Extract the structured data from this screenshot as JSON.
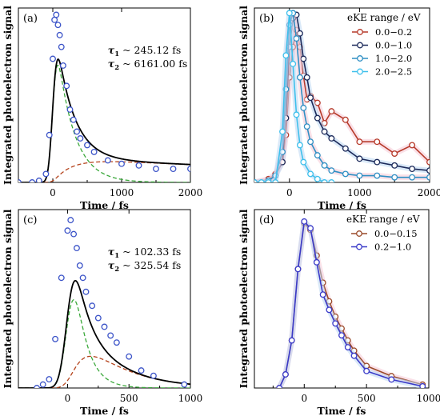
{
  "colors": {
    "black": "#000000",
    "fit_green": "#3aa83a",
    "fit_brown": "#b5441d",
    "marker_blue": "#3c54c8",
    "red_series": "#b63a2a",
    "navy_series": "#1c2a5a",
    "mid_blue_series": "#2f8fc4",
    "light_blue_series": "#3fc0ec",
    "blue_series": "#3a3ac8",
    "brown_series": "#9a4a2a",
    "shadow_pink": "#f6c8d6",
    "shadow_blue": "#bcd7f3"
  },
  "chart_data": [
    {
      "id": "a",
      "panel_label": "(a)",
      "type": "scatter",
      "xlabel": "Time / fs",
      "ylabel": "Integrated photoelectron signal",
      "xlim": [
        -500,
        2000
      ],
      "ylim": [
        0,
        1.03
      ],
      "xticks": [
        0,
        1000,
        2000
      ],
      "xtick_labels": [
        "0",
        "1000",
        "2000"
      ],
      "annotations": [
        {
          "sym": "τ",
          "sub": "1",
          "text": " ~ 245.12 fs"
        },
        {
          "sym": "τ",
          "sub": "2",
          "text": " ~ 6161.00 fs"
        }
      ],
      "fit": {
        "tau1": 245.12,
        "tau2": 6161.0,
        "sigma": 50,
        "t0": 0,
        "a_fast": 1.02,
        "a_slow": 0.14
      },
      "points": {
        "x": [
          -500,
          -300,
          -200,
          -100,
          -50,
          0,
          25,
          50,
          75,
          100,
          125,
          150,
          200,
          250,
          300,
          350,
          400,
          500,
          600,
          800,
          1000,
          1250,
          1500,
          1750,
          2000
        ],
        "y": [
          0.0,
          0.0,
          0.01,
          0.05,
          0.28,
          0.73,
          0.96,
          0.99,
          0.93,
          0.87,
          0.8,
          0.69,
          0.57,
          0.43,
          0.37,
          0.3,
          0.26,
          0.22,
          0.18,
          0.13,
          0.11,
          0.1,
          0.08,
          0.08,
          0.08
        ]
      }
    },
    {
      "id": "b",
      "panel_label": "(b)",
      "type": "line",
      "xlabel": "Time / fs",
      "ylabel": "Integrated photoelectron signal",
      "xlim": [
        -500,
        2000
      ],
      "ylim": [
        0,
        1.03
      ],
      "xticks": [
        0,
        1000,
        2000
      ],
      "xtick_labels": [
        "0",
        "1000",
        "2000"
      ],
      "legend_title": "eKE range / eV",
      "legend_position": "top-right",
      "series": [
        {
          "name": "0.0−0.2",
          "color_key": "red_series",
          "x": [
            -500,
            -300,
            -200,
            -100,
            -50,
            0,
            50,
            100,
            150,
            200,
            250,
            300,
            400,
            500,
            600,
            800,
            1000,
            1250,
            1500,
            1750,
            2000
          ],
          "y": [
            0.0,
            0.02,
            0.05,
            0.12,
            0.28,
            0.62,
            0.8,
            0.9,
            0.8,
            0.63,
            0.49,
            0.51,
            0.47,
            0.35,
            0.42,
            0.37,
            0.24,
            0.24,
            0.17,
            0.22,
            0.12
          ]
        },
        {
          "name": "0.0−1.0",
          "color_key": "navy_series",
          "x": [
            -500,
            -300,
            -200,
            -100,
            -50,
            0,
            50,
            100,
            150,
            200,
            250,
            300,
            400,
            500,
            600,
            800,
            1000,
            1250,
            1500,
            1750,
            2000
          ],
          "y": [
            0.0,
            0.01,
            0.04,
            0.12,
            0.38,
            0.8,
            0.97,
            0.99,
            0.88,
            0.73,
            0.62,
            0.5,
            0.38,
            0.3,
            0.26,
            0.2,
            0.14,
            0.12,
            0.1,
            0.08,
            0.07
          ]
        },
        {
          "name": "1.0−2.0",
          "color_key": "mid_blue_series",
          "x": [
            -500,
            -300,
            -200,
            -100,
            -50,
            0,
            50,
            100,
            150,
            200,
            250,
            300,
            400,
            500,
            600,
            800,
            1000,
            1250,
            1500,
            1750,
            2000
          ],
          "y": [
            0.0,
            0.01,
            0.04,
            0.18,
            0.55,
            0.93,
            1.0,
            0.85,
            0.62,
            0.44,
            0.33,
            0.24,
            0.16,
            0.1,
            0.07,
            0.05,
            0.04,
            0.04,
            0.03,
            0.03,
            0.03
          ]
        },
        {
          "name": "2.0−2.5",
          "color_key": "light_blue_series",
          "x": [
            -500,
            -400,
            -300,
            -200,
            -100,
            -50,
            0,
            50,
            100,
            150,
            200,
            300,
            400,
            500,
            600
          ],
          "y": [
            0.0,
            0.0,
            0.0,
            0.0,
            0.3,
            0.75,
            1.0,
            0.7,
            0.4,
            0.22,
            0.12,
            0.05,
            0.02,
            0.0,
            0.0
          ]
        }
      ]
    },
    {
      "id": "c",
      "panel_label": "(c)",
      "type": "scatter",
      "xlabel": "Time / fs",
      "ylabel": "Integrated photoelectron signal",
      "xlim": [
        -400,
        1000
      ],
      "ylim": [
        0,
        1.02
      ],
      "xticks": [
        0,
        500,
        1000
      ],
      "xtick_labels": [
        "0",
        "500",
        "1000"
      ],
      "annotations": [
        {
          "sym": "τ",
          "sub": "1",
          "text": " ~ 102.33 fs"
        },
        {
          "sym": "τ",
          "sub": "2",
          "text": " ~ 325.54 fs"
        }
      ],
      "fit": {
        "tau1": 102.33,
        "tau2": 325.54,
        "sigma": 50,
        "t0": 0,
        "a_fast": 1.05,
        "a_slow": 0.32
      },
      "points": {
        "x": [
          -250,
          -200,
          -150,
          -100,
          -50,
          0,
          25,
          50,
          75,
          100,
          125,
          150,
          200,
          250,
          300,
          350,
          400,
          500,
          600,
          700,
          950
        ],
        "y": [
          0.0,
          0.02,
          0.05,
          0.28,
          0.63,
          0.9,
          0.96,
          0.88,
          0.8,
          0.7,
          0.63,
          0.55,
          0.47,
          0.4,
          0.35,
          0.3,
          0.26,
          0.18,
          0.1,
          0.07,
          0.02
        ]
      }
    },
    {
      "id": "d",
      "panel_label": "(d)",
      "type": "line",
      "xlabel": "Time / fs",
      "ylabel": "Integrated photoelectron signal",
      "xlim": [
        -400,
        1000
      ],
      "ylim": [
        0,
        1.05
      ],
      "xticks": [
        0,
        500,
        1000
      ],
      "xtick_labels": [
        "0",
        "500",
        "1000"
      ],
      "legend_title": "eKE range / eV",
      "legend_position": "top-right",
      "series": [
        {
          "name": "0.0−0.15",
          "color_key": "brown_series",
          "x": [
            -200,
            -150,
            -100,
            -50,
            0,
            50,
            100,
            150,
            200,
            250,
            300,
            350,
            400,
            500,
            700,
            950
          ],
          "y": [
            0.0,
            0.08,
            0.28,
            0.7,
            0.97,
            0.93,
            0.78,
            0.62,
            0.51,
            0.42,
            0.35,
            0.28,
            0.22,
            0.13,
            0.07,
            0.02
          ]
        },
        {
          "name": "0.2−1.0",
          "color_key": "blue_series",
          "x": [
            -200,
            -150,
            -100,
            -50,
            0,
            50,
            100,
            150,
            200,
            250,
            300,
            350,
            400,
            500,
            700,
            950
          ],
          "y": [
            0.0,
            0.08,
            0.28,
            0.7,
            0.98,
            0.94,
            0.74,
            0.55,
            0.46,
            0.38,
            0.31,
            0.24,
            0.19,
            0.1,
            0.05,
            0.01
          ]
        }
      ]
    }
  ]
}
